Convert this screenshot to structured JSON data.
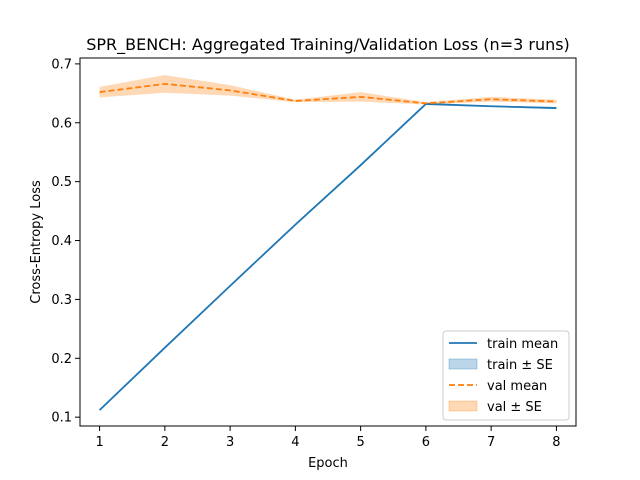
{
  "chart_data": {
    "type": "line",
    "title": "SPR_BENCH: Aggregated Training/Validation Loss (n=3 runs)",
    "xlabel": "Epoch",
    "ylabel": "Cross-Entropy Loss",
    "x": [
      1,
      2,
      3,
      4,
      5,
      6,
      7,
      8
    ],
    "xlim": [
      0.7,
      8.3
    ],
    "ylim": [
      0.085,
      0.71
    ],
    "xticks": [
      1,
      2,
      3,
      4,
      5,
      6,
      7,
      8
    ],
    "yticks": [
      0.1,
      0.2,
      0.3,
      0.4,
      0.5,
      0.6,
      0.7
    ],
    "grid": false,
    "legend_position": "lower-right",
    "series": [
      {
        "name": "train mean",
        "band_name": "train ± SE",
        "color": "#1f77b4",
        "line_style": "solid",
        "values": [
          0.112,
          0.218,
          0.323,
          0.427,
          0.528,
          0.632,
          0.628,
          0.625
        ],
        "se": [
          0.001,
          0.001,
          0.001,
          0.002,
          0.002,
          0.002,
          0.001,
          0.002
        ]
      },
      {
        "name": "val mean",
        "band_name": "val ± SE",
        "color": "#ff7f0e",
        "line_style": "dashed",
        "values": [
          0.652,
          0.666,
          0.655,
          0.637,
          0.644,
          0.633,
          0.64,
          0.636
        ],
        "se": [
          0.009,
          0.015,
          0.009,
          0.002,
          0.008,
          0.002,
          0.004,
          0.003
        ]
      }
    ]
  }
}
